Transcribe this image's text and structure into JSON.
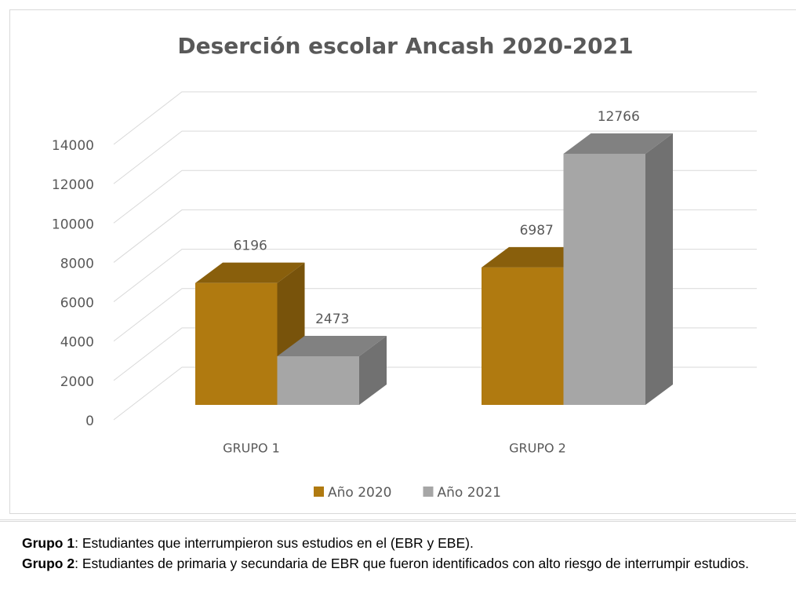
{
  "chart_data": {
    "type": "bar",
    "title": "Deserción escolar Ancash 2020-2021",
    "categories": [
      "GRUPO 1",
      "GRUPO 2"
    ],
    "series": [
      {
        "name": "Año 2020",
        "color": "#b07a10",
        "values": [
          6196,
          6987
        ]
      },
      {
        "name": "Año 2021",
        "color": "#a6a6a6",
        "values": [
          2473,
          12766
        ]
      }
    ],
    "ylim": [
      0,
      14000
    ],
    "yticks": [
      0,
      2000,
      4000,
      6000,
      8000,
      10000,
      12000,
      14000
    ],
    "grid": true,
    "legend": "bottom"
  },
  "notes": [
    {
      "label": "Grupo 1",
      "text": ": Estudiantes que interrumpieron sus estudios en el (EBR y EBE)."
    },
    {
      "label": "Grupo 2",
      "text": ": Estudiantes de primaria y secundaria de EBR que fueron identificados con alto riesgo de interrumpir estudios."
    }
  ]
}
